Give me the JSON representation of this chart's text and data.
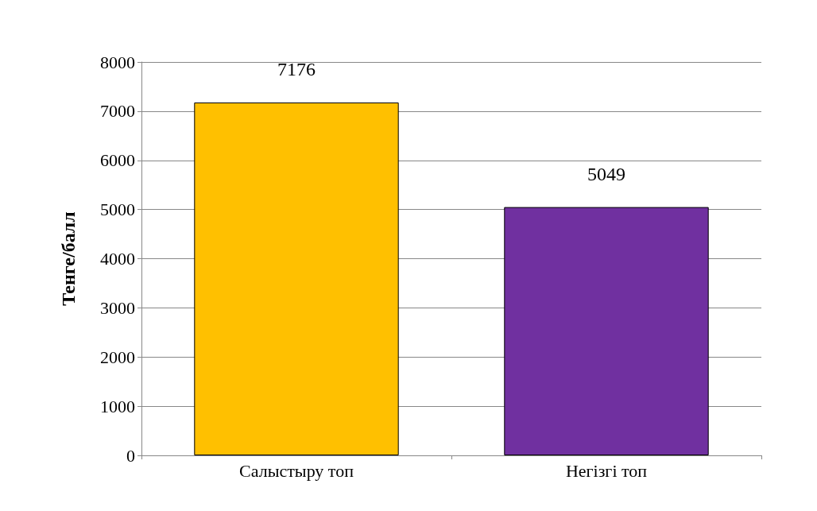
{
  "chart_data": {
    "type": "bar",
    "ylabel": "Тенге/балл",
    "categories": [
      "Салыстыру топ",
      "Негізгі топ"
    ],
    "values": [
      7176,
      5049
    ],
    "colors": [
      "#ffc000",
      "#7030a0"
    ],
    "ylim": [
      0,
      8000
    ],
    "yticks": [
      0,
      1000,
      2000,
      3000,
      4000,
      5000,
      6000,
      7000,
      8000
    ],
    "grid": "y",
    "data_labels": true
  }
}
